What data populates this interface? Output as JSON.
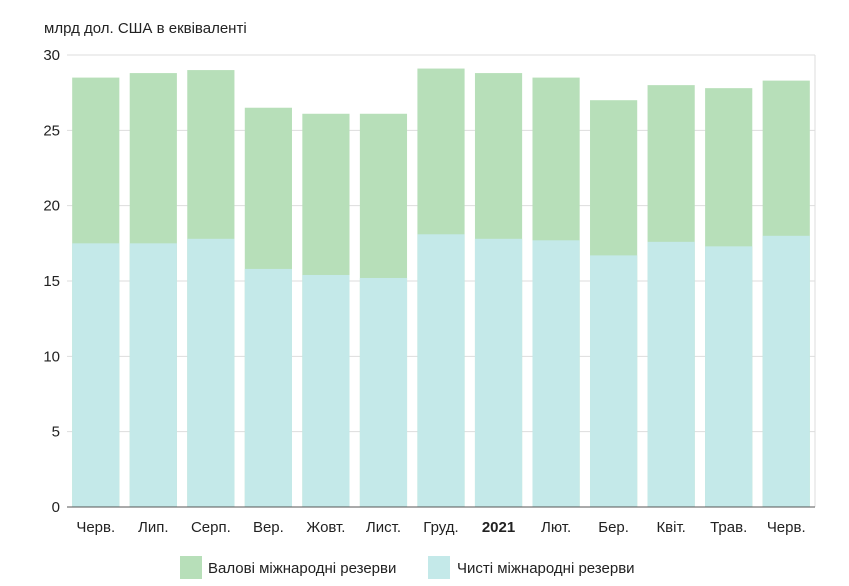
{
  "chart_data": {
    "type": "bar",
    "stacked": false,
    "overlapping": true,
    "unit_label": "млрд дол. США в еквіваленті",
    "categories": [
      "Черв.",
      "Лип.",
      "Серп.",
      "Вер.",
      "Жовт.",
      "Лист.",
      "Груд.",
      "2021",
      "Лют.",
      "Бер.",
      "Квіт.",
      "Трав.",
      "Черв."
    ],
    "bold_categories": [
      "2021"
    ],
    "series": [
      {
        "name": "Валові міжнародні резерви",
        "color": "#b7dfb9",
        "values": [
          28.5,
          28.8,
          29.0,
          26.5,
          26.1,
          26.1,
          29.1,
          28.8,
          28.5,
          27.0,
          28.0,
          27.8,
          28.3
        ]
      },
      {
        "name": "Чисті міжнародні резерви",
        "color": "#c4e9e9",
        "values": [
          17.5,
          17.5,
          17.8,
          15.8,
          15.4,
          15.2,
          18.1,
          17.8,
          17.7,
          16.7,
          17.6,
          17.3,
          18.0
        ]
      }
    ],
    "y_ticks": [
      "0",
      "5",
      "10",
      "15",
      "20",
      "25",
      "30"
    ],
    "ylim": [
      0,
      30
    ],
    "grid": true,
    "legend_position": "bottom-center",
    "axis_color": "#555555",
    "grid_color": "#dddddd"
  }
}
